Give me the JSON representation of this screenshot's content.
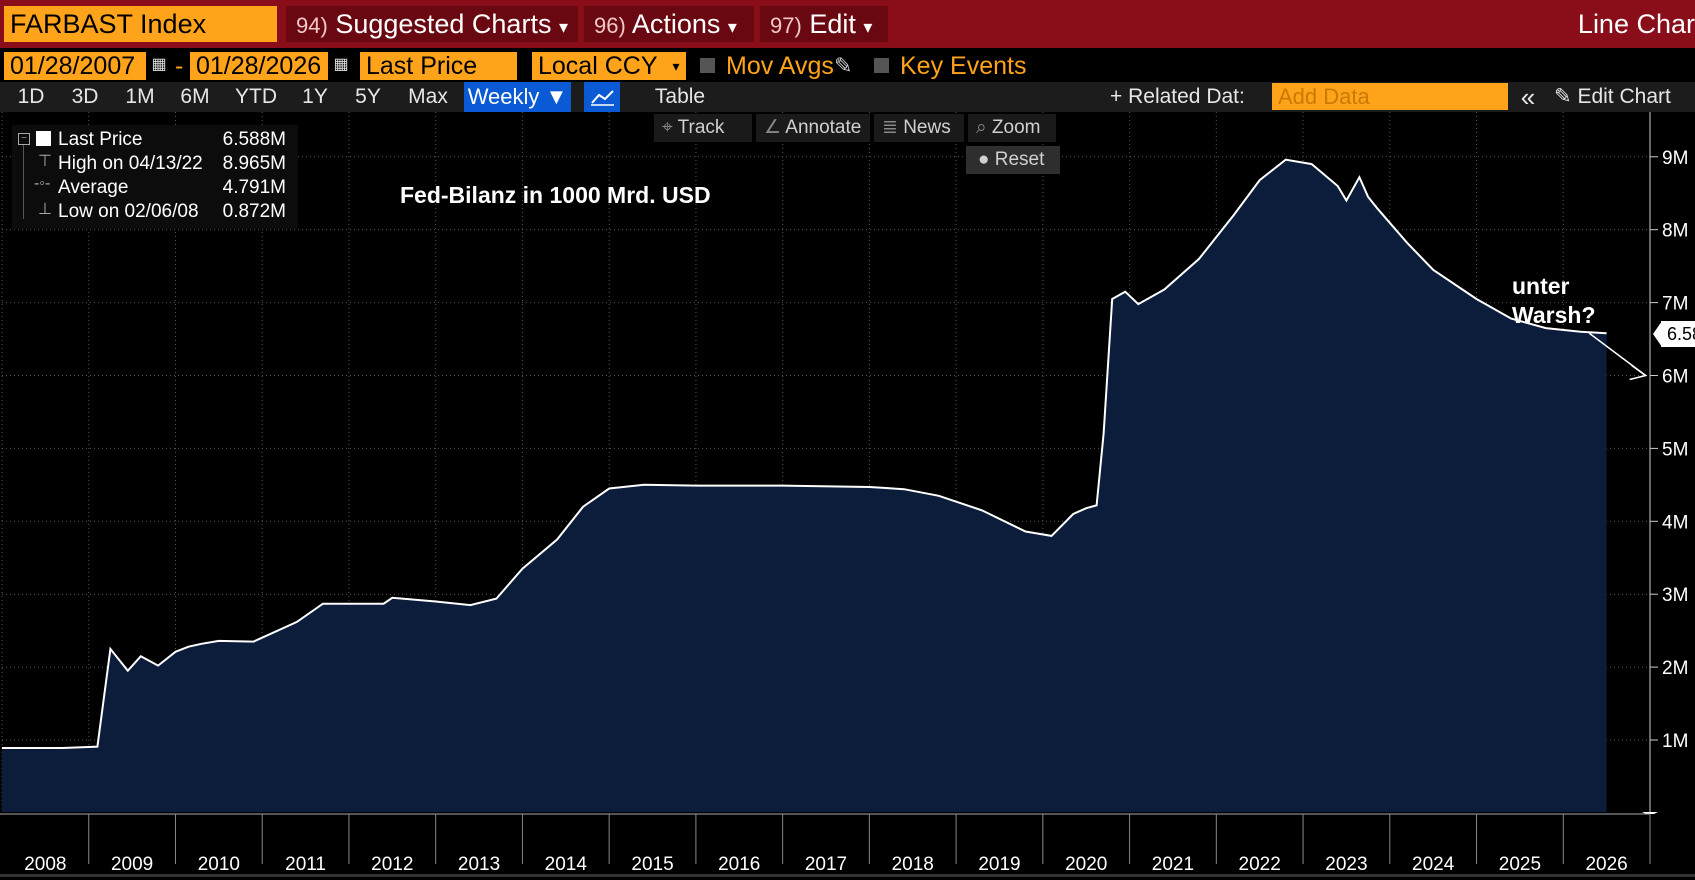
{
  "header": {
    "ticker": "FARBAST Index",
    "menus": [
      {
        "num": "94)",
        "label": "Suggested Charts",
        "caret": "▾"
      },
      {
        "num": "96)",
        "label": "Actions",
        "caret": "▾"
      },
      {
        "num": "97)",
        "label": "Edit",
        "caret": "▾"
      }
    ],
    "chart_type": "Line Char"
  },
  "options": {
    "start_date": "01/28/2007",
    "end_date": "01/28/2026",
    "dash": "-",
    "price_field": "Last Price",
    "currency": "Local CCY",
    "mov_avgs": "Mov Avgs",
    "key_events": "Key Events"
  },
  "periods": [
    "1D",
    "3D",
    "1M",
    "6M",
    "YTD",
    "1Y",
    "5Y",
    "Max"
  ],
  "frequency": "Weekly ▼",
  "table_label": "Table",
  "related_data": "+ Related Dat:",
  "add_data_placeholder": "Add Data",
  "collapse_label": "«",
  "edit_chart": "Edit Chart",
  "tools": {
    "track": "Track",
    "annotate": "Annotate",
    "news": "News",
    "zoom": "Zoom",
    "reset": "Reset"
  },
  "legend": {
    "last_label": "Last Price",
    "last_value": "6.588M",
    "high_label": "High on 04/13/22",
    "high_value": "8.965M",
    "avg_label": "Average",
    "avg_value": "4.791M",
    "low_label": "Low on 02/06/08",
    "low_value": "0.872M"
  },
  "chart_title": "Fed-Bilanz in 1000 Mrd. USD",
  "annotation": {
    "line1": "unter",
    "line2": "Warsh?"
  },
  "last_value_box": "6.58",
  "colors": {
    "line": "#ffffff",
    "fill": "#0b1d3a",
    "accent": "#ffa31a",
    "menu_bar": "#8a0d1a",
    "button": "#0a5ad6"
  },
  "chart_data": {
    "type": "area",
    "title": "Fed-Bilanz in 1000 Mrd. USD",
    "series_name": "Last Price",
    "xlabel": "",
    "ylabel": "",
    "xlim": [
      2007.5,
      2026.5
    ],
    "ylim": [
      0,
      9.5
    ],
    "y_unit": "M",
    "y_ticks": [
      1,
      2,
      3,
      4,
      5,
      6,
      7,
      8,
      9
    ],
    "y_tick_labels": [
      "1M",
      "2M",
      "3M",
      "4M",
      "5M",
      "6M",
      "7M",
      "8M",
      "9M"
    ],
    "x_tick_labels": [
      "2008",
      "2009",
      "2010",
      "2011",
      "2012",
      "2013",
      "2014",
      "2015",
      "2016",
      "2017",
      "2018",
      "2019",
      "2020",
      "2021",
      "2022",
      "2023",
      "2024",
      "2025",
      "2026"
    ],
    "x": [
      2007.5,
      2008.2,
      2008.6,
      2008.75,
      2008.95,
      2009.1,
      2009.3,
      2009.5,
      2009.65,
      2009.8,
      2010.0,
      2010.4,
      2010.9,
      2011.2,
      2011.5,
      2011.9,
      2012.0,
      2012.5,
      2012.9,
      2013.2,
      2013.5,
      2013.9,
      2014.2,
      2014.5,
      2014.9,
      2015.5,
      2016.5,
      2017.5,
      2017.9,
      2018.3,
      2018.8,
      2019.3,
      2019.6,
      2019.85,
      2020.0,
      2020.12,
      2020.2,
      2020.3,
      2020.45,
      2020.6,
      2020.9,
      2021.3,
      2021.7,
      2022.0,
      2022.3,
      2022.6,
      2022.9,
      2023.0,
      2023.15,
      2023.25,
      2023.35,
      2023.7,
      2024.0,
      2024.5,
      2024.9,
      2025.3,
      2025.7,
      2026.0
    ],
    "values": [
      0.89,
      0.89,
      0.91,
      2.25,
      1.95,
      2.15,
      2.02,
      2.21,
      2.28,
      2.32,
      2.36,
      2.35,
      2.62,
      2.87,
      2.87,
      2.87,
      2.95,
      2.9,
      2.85,
      2.94,
      3.35,
      3.75,
      4.2,
      4.45,
      4.5,
      4.49,
      4.49,
      4.47,
      4.44,
      4.35,
      4.15,
      3.86,
      3.8,
      4.1,
      4.18,
      4.22,
      5.2,
      7.05,
      7.15,
      6.98,
      7.18,
      7.6,
      8.2,
      8.68,
      8.96,
      8.9,
      8.6,
      8.4,
      8.72,
      8.45,
      8.3,
      7.82,
      7.45,
      7.05,
      6.78,
      6.65,
      6.6,
      6.58
    ],
    "forecast_arrow": {
      "from": [
        2025.8,
        6.58
      ],
      "to": [
        2026.45,
        6.0
      ],
      "label": "unter Warsh?"
    }
  }
}
